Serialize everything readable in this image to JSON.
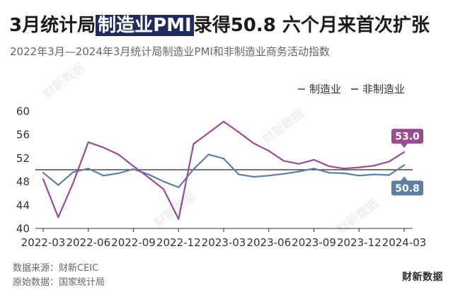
{
  "chart_data": {
    "type": "line",
    "title": {
      "pre": "3月统计局",
      "highlight": "制造业PMI",
      "post": "录得50.8 六个月来首次扩张"
    },
    "subtitle": "2022年3月—2024年3月统计局制造业PMI和非制造业商务活动指数",
    "legend_position": "top-right",
    "grid": false,
    "ylim": [
      40,
      60
    ],
    "yticks": [
      40,
      44,
      48,
      52,
      56,
      60
    ],
    "reference_line": 50,
    "x": [
      "2022-03",
      "2022-04",
      "2022-05",
      "2022-06",
      "2022-07",
      "2022-08",
      "2022-09",
      "2022-10",
      "2022-11",
      "2022-12",
      "2023-01",
      "2023-02",
      "2023-03",
      "2023-04",
      "2023-05",
      "2023-06",
      "2023-07",
      "2023-08",
      "2023-09",
      "2023-10",
      "2023-11",
      "2023-12",
      "2024-01",
      "2024-02",
      "2024-03"
    ],
    "xticks": [
      "2022-03",
      "2022-06",
      "2022-09",
      "2022-12",
      "2023-03",
      "2023-06",
      "2023-09",
      "2023-12",
      "2024-03"
    ],
    "series": [
      {
        "name": "制造业",
        "color": "#5b7fa7",
        "values": [
          49.5,
          47.4,
          49.6,
          50.2,
          49.0,
          49.4,
          50.1,
          49.2,
          48.0,
          47.0,
          50.1,
          52.6,
          51.9,
          49.2,
          48.8,
          49.0,
          49.3,
          49.7,
          50.2,
          49.5,
          49.4,
          49.0,
          49.2,
          49.1,
          50.8
        ],
        "end_label": "50.8"
      },
      {
        "name": "非制造业",
        "color": "#9c4a93",
        "values": [
          48.4,
          41.9,
          47.8,
          54.7,
          53.8,
          52.6,
          50.6,
          48.7,
          46.7,
          41.6,
          54.4,
          56.3,
          58.2,
          56.4,
          54.5,
          53.2,
          51.5,
          51.0,
          51.7,
          50.6,
          50.2,
          50.4,
          50.7,
          51.4,
          53.0
        ],
        "end_label": "53.0"
      }
    ]
  },
  "footer": {
    "source": "数据来源：财新CEIC",
    "raw_source": "原始数据：国家统计局",
    "logo": "财新数据"
  },
  "watermark": "财新数据"
}
